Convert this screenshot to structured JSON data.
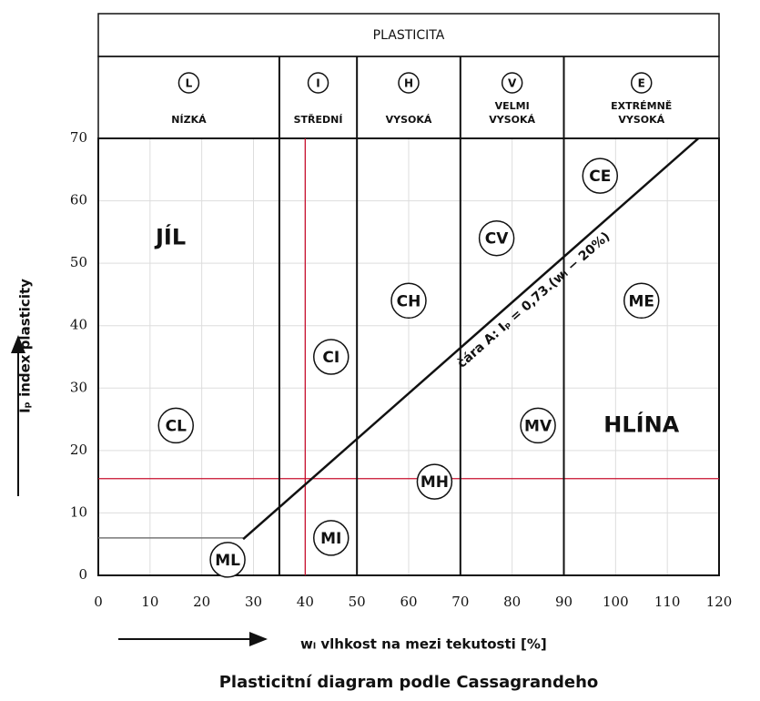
{
  "chart_data": {
    "type": "plasticity",
    "header": "PLASTICITA",
    "title": "Plasticitní diagram podle Cassagrandeho",
    "x_label": "wₗ vlhkost na mezi tekutosti [%]",
    "y_label": "Iₚ index plasticity",
    "xlim": [
      0,
      120
    ],
    "ylim": [
      0,
      70
    ],
    "xticks": [
      0,
      10,
      20,
      30,
      40,
      50,
      60,
      70,
      80,
      90,
      100,
      110,
      120
    ],
    "yticks": [
      0,
      10,
      20,
      30,
      40,
      50,
      60,
      70
    ],
    "grid": true,
    "zone_bounds": [
      35,
      50,
      70,
      90
    ],
    "zones": [
      {
        "letter": "L",
        "name": [
          "NÍZKÁ"
        ]
      },
      {
        "letter": "I",
        "name": [
          "STŘEDNÍ"
        ]
      },
      {
        "letter": "H",
        "name": [
          "VYSOKÁ"
        ]
      },
      {
        "letter": "V",
        "name": [
          "VELMI",
          "VYSOKÁ"
        ]
      },
      {
        "letter": "E",
        "name": [
          "EXTRÉMNĚ",
          "VYSOKÁ"
        ]
      }
    ],
    "a_line": {
      "label": "čára A: Iₚ = 0,73.(wₗ − 20%)",
      "x": [
        28,
        116
      ],
      "y": [
        5.8,
        70
      ],
      "color": "#111"
    },
    "low_line": {
      "x": [
        0,
        28
      ],
      "y": [
        6,
        6
      ],
      "color": "#777"
    },
    "red_lines": {
      "x": 40,
      "y": 15.5,
      "color": "#c8102e"
    },
    "soils": [
      {
        "label": "CE",
        "x": 97,
        "y": 64
      },
      {
        "label": "CV",
        "x": 77,
        "y": 54
      },
      {
        "label": "CH",
        "x": 60,
        "y": 44
      },
      {
        "label": "ME",
        "x": 105,
        "y": 44
      },
      {
        "label": "CI",
        "x": 45,
        "y": 35
      },
      {
        "label": "CL",
        "x": 15,
        "y": 24
      },
      {
        "label": "MV",
        "x": 85,
        "y": 24
      },
      {
        "label": "MH",
        "x": 65,
        "y": 15
      },
      {
        "label": "MI",
        "x": 45,
        "y": 6
      },
      {
        "label": "ML",
        "x": 25,
        "y": 2.5
      }
    ],
    "groups": [
      {
        "label": "JÍL",
        "x": 14,
        "y": 54
      },
      {
        "label": "HLÍNA",
        "x": 105,
        "y": 24
      }
    ]
  }
}
